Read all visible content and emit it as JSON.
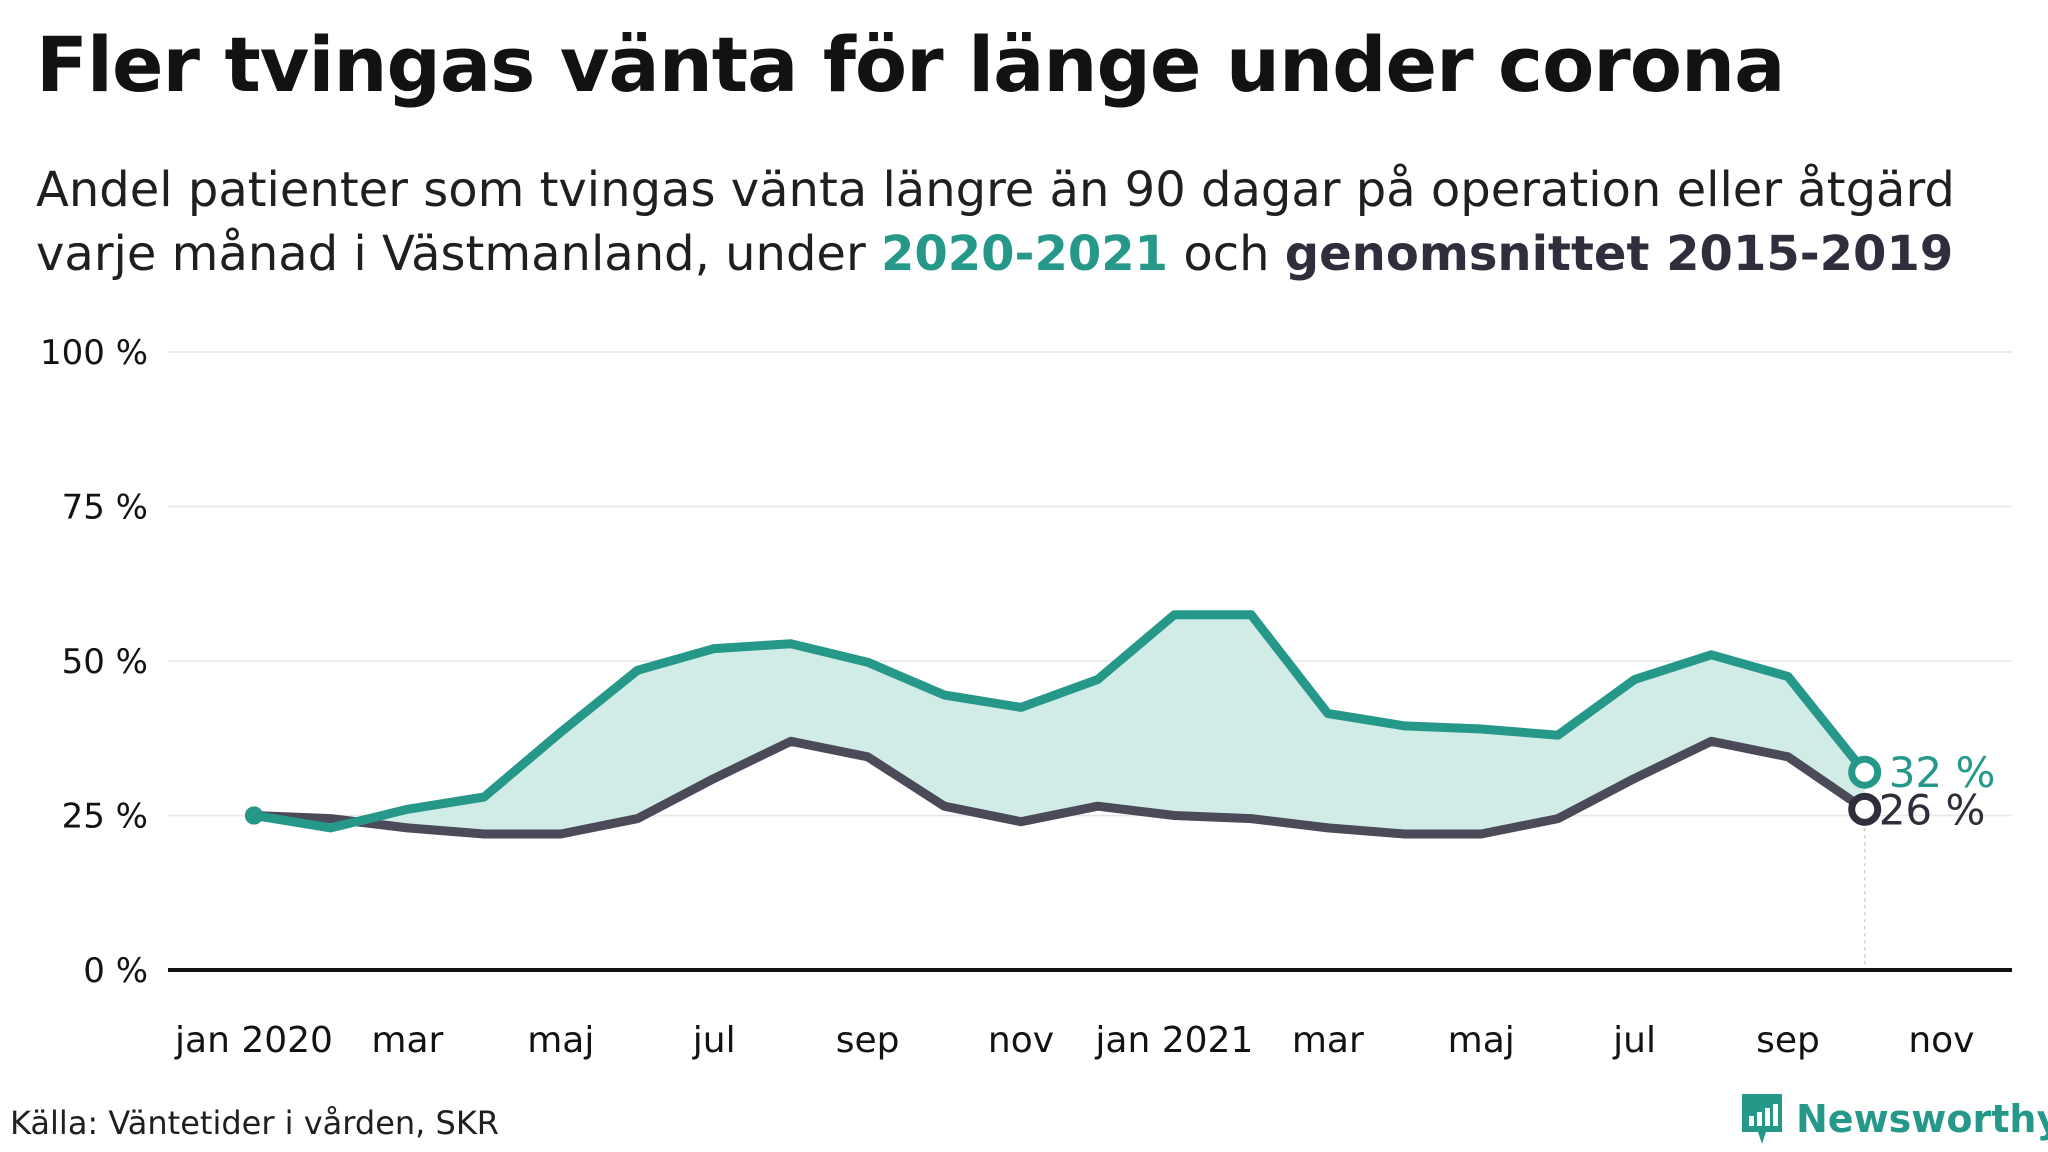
{
  "title": "Fler tvingas vänta för länge under corona",
  "subtitle": {
    "line1": "Andel patienter som tvingas vänta längre än 90 dagar på operation eller åtgärd",
    "line2_prefix": "varje månad i Västmanland, under ",
    "line2_highlight1": "2020-2021",
    "line2_middle": " och ",
    "line2_highlight2": "genomsnittet 2015-2019"
  },
  "source": "Källa: Väntetider i vården, SKR",
  "brand": "Newsworthy",
  "colors": {
    "series_2020_2021": "#26988a",
    "series_avg": "#4a4a58",
    "area_fill": "#d1ebe7",
    "grid": "#e6e6e6",
    "axis": "#121212"
  },
  "chart_data": {
    "type": "line",
    "x_tick_labels": [
      "jan 2020",
      "mar",
      "maj",
      "jul",
      "sep",
      "nov",
      "jan 2021",
      "mar",
      "maj",
      "jul",
      "sep",
      "nov"
    ],
    "y_tick_labels": [
      "0 %",
      "25 %",
      "50 %",
      "75 %",
      "100 %"
    ],
    "y_ticks": [
      0,
      25,
      50,
      75,
      100
    ],
    "ylim": [
      0,
      100
    ],
    "x_months": [
      "2020-01",
      "2020-02",
      "2020-03",
      "2020-04",
      "2020-05",
      "2020-06",
      "2020-07",
      "2020-08",
      "2020-09",
      "2020-10",
      "2020-11",
      "2020-12",
      "2021-01",
      "2021-02",
      "2021-03",
      "2021-04",
      "2021-05",
      "2021-06",
      "2021-07",
      "2021-08",
      "2021-09",
      "2021-10"
    ],
    "series": [
      {
        "name": "2020-2021",
        "values": [
          25.0,
          23.0,
          26.0,
          28.0,
          38.5,
          48.5,
          52.0,
          52.8,
          49.8,
          44.5,
          42.5,
          47.0,
          57.5,
          57.5,
          41.5,
          39.5,
          39.0,
          38.0,
          47.0,
          51.0,
          47.5,
          32.0
        ],
        "end_label": "32 %"
      },
      {
        "name": "genomsnittet 2015-2019",
        "values": [
          25.0,
          24.5,
          23.0,
          22.0,
          22.0,
          24.5,
          31.0,
          37.0,
          34.5,
          26.5,
          24.0,
          26.5,
          25.0,
          24.5,
          23.0,
          22.0,
          22.0,
          24.5,
          31.0,
          37.0,
          34.5,
          26.0
        ],
        "end_label": "26 %"
      }
    ],
    "grid": true
  }
}
